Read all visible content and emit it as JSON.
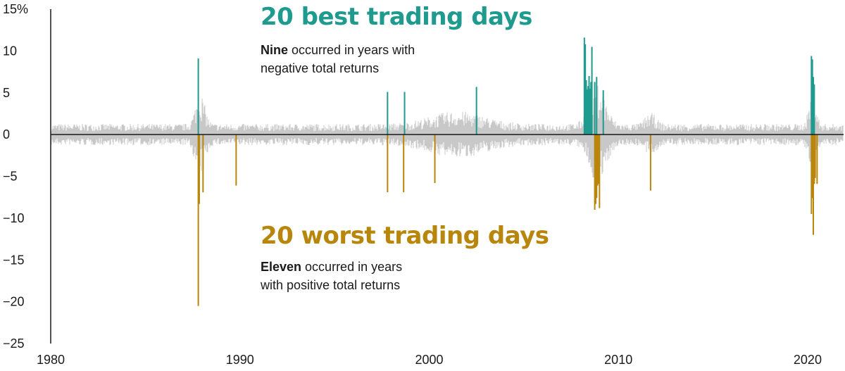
{
  "colors": {
    "noise": "#c8c8c8",
    "best": "#1f9a8f",
    "worst": "#b8860b",
    "axis": "#1a1a1a"
  },
  "annotations": {
    "best_title": "20 best trading days",
    "best_bold": "Nine",
    "best_line1": " occurred in years with",
    "best_line2": "negative total returns",
    "worst_title": "20 worst trading days",
    "worst_bold": "Eleven",
    "worst_line1": " occurred in years",
    "worst_line2": "with positive total returns"
  },
  "chart_data": {
    "type": "bar",
    "xlim": [
      1980,
      2021.9
    ],
    "ylim": [
      -25,
      15
    ],
    "y_ticks": [
      15,
      10,
      5,
      0,
      -5,
      -10,
      -15,
      -20,
      -25
    ],
    "y_tick_labels": [
      "15%",
      "10",
      "5",
      "0",
      "−5",
      "−10",
      "−15",
      "−20",
      "−25"
    ],
    "x_ticks": [
      1980,
      1990,
      2000,
      2010,
      2020
    ],
    "x_tick_labels": [
      "1980",
      "1990",
      "2000",
      "2010",
      "2020"
    ],
    "series": [
      {
        "name": "20 best trading days",
        "points": [
          {
            "x": 1987.8,
            "y": 9.1
          },
          {
            "x": 1997.8,
            "y": 5.1
          },
          {
            "x": 1998.7,
            "y": 5.1
          },
          {
            "x": 2002.5,
            "y": 5.7
          },
          {
            "x": 2008.2,
            "y": 11.6
          },
          {
            "x": 2008.25,
            "y": 10.8
          },
          {
            "x": 2008.3,
            "y": 6.5
          },
          {
            "x": 2008.35,
            "y": 5.4
          },
          {
            "x": 2008.4,
            "y": 5.8
          },
          {
            "x": 2008.45,
            "y": 7.0
          },
          {
            "x": 2008.5,
            "y": 5.5
          },
          {
            "x": 2008.55,
            "y": 6.3
          },
          {
            "x": 2008.6,
            "y": 10.5
          },
          {
            "x": 2008.75,
            "y": 6.3
          },
          {
            "x": 2008.85,
            "y": 6.9
          },
          {
            "x": 2009.2,
            "y": 5.3
          },
          {
            "x": 2020.2,
            "y": 9.4
          },
          {
            "x": 2020.25,
            "y": 9.0
          },
          {
            "x": 2020.3,
            "y": 6.9
          },
          {
            "x": 2020.35,
            "y": 6.0
          }
        ]
      },
      {
        "name": "20 worst trading days",
        "points": [
          {
            "x": 1987.8,
            "y": -20.5
          },
          {
            "x": 1987.85,
            "y": -8.3
          },
          {
            "x": 1988.05,
            "y": -6.9
          },
          {
            "x": 1989.8,
            "y": -6.1
          },
          {
            "x": 1997.8,
            "y": -6.9
          },
          {
            "x": 1998.65,
            "y": -6.9
          },
          {
            "x": 2000.3,
            "y": -5.8
          },
          {
            "x": 2008.75,
            "y": -9.0
          },
          {
            "x": 2008.8,
            "y": -8.3
          },
          {
            "x": 2008.85,
            "y": -7.6
          },
          {
            "x": 2008.9,
            "y": -6.1
          },
          {
            "x": 2008.95,
            "y": -5.9
          },
          {
            "x": 2009.0,
            "y": -8.8
          },
          {
            "x": 2011.7,
            "y": -6.7
          },
          {
            "x": 2020.2,
            "y": -9.5
          },
          {
            "x": 2020.25,
            "y": -7.6
          },
          {
            "x": 2020.3,
            "y": -12.0
          },
          {
            "x": 2020.35,
            "y": -5.9
          },
          {
            "x": 2020.4,
            "y": -5.2
          },
          {
            "x": 2020.5,
            "y": -5.9
          }
        ]
      }
    ],
    "background_series": "daily returns (all other trading days)"
  }
}
